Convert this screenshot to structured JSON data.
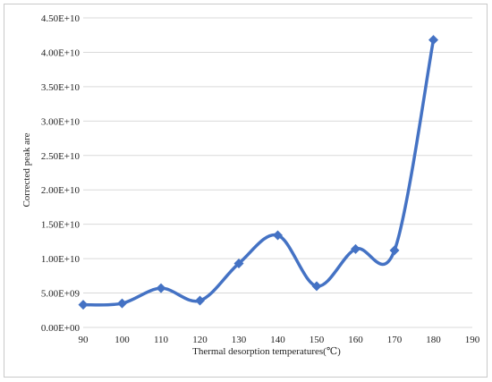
{
  "chart_data": {
    "type": "line",
    "title": "",
    "xlabel": "Thermal desorption temperatures(℃)",
    "ylabel": "Corrected peak are",
    "xlim": [
      90,
      190
    ],
    "ylim": [
      0,
      45000000000
    ],
    "x_ticks": [
      90,
      100,
      110,
      120,
      130,
      140,
      150,
      160,
      170,
      180,
      190
    ],
    "y_ticks": [
      0,
      5000000000,
      10000000000,
      15000000000,
      20000000000,
      25000000000,
      30000000000,
      35000000000,
      40000000000,
      45000000000
    ],
    "x_tick_labels": [
      "90",
      "100",
      "110",
      "120",
      "130",
      "140",
      "150",
      "160",
      "170",
      "180",
      "190"
    ],
    "y_tick_labels": [
      "0.00E+00",
      "5.00E+09",
      "1.00E+10",
      "1.50E+10",
      "2.00E+10",
      "2.50E+10",
      "3.00E+10",
      "3.50E+10",
      "4.00E+10",
      "4.50E+10"
    ],
    "grid": true,
    "series": [
      {
        "x": [
          90,
          100,
          110,
          120,
          130,
          140,
          150,
          160,
          170,
          180
        ],
        "y": [
          3300000000,
          3500000000,
          5700000000,
          3900000000,
          9300000000,
          13400000000,
          6000000000,
          11400000000,
          11200000000,
          41800000000
        ],
        "color": "#4472c4",
        "marker": "diamond",
        "smooth": true
      }
    ]
  }
}
